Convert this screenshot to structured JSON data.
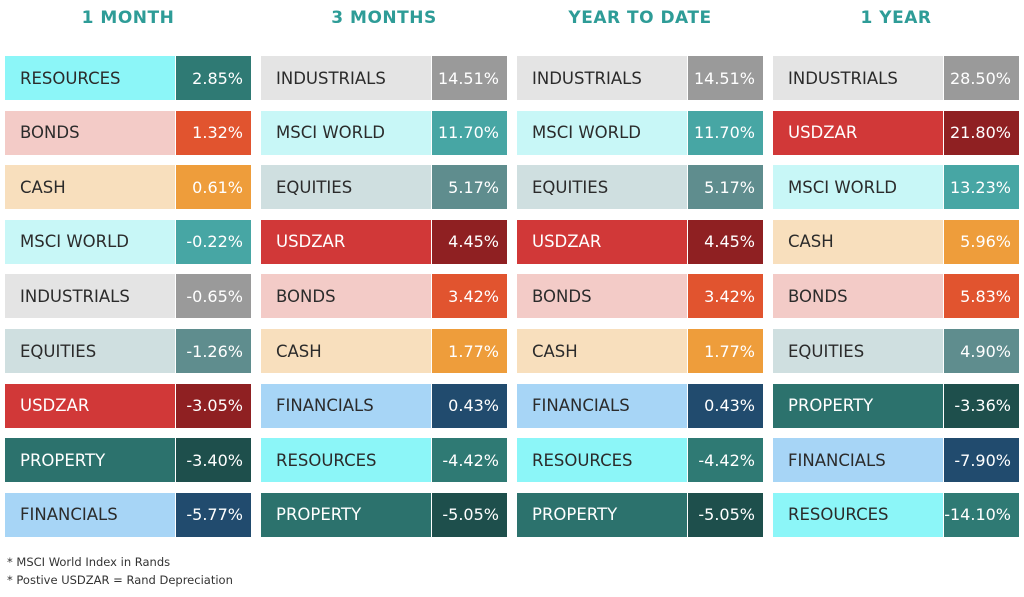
{
  "palette": {
    "RESOURCES": {
      "label_bg": "#8cf6f8",
      "value_bg": "#2f7a74",
      "dark": false
    },
    "BONDS": {
      "label_bg": "#f3cbc7",
      "value_bg": "#e1542f",
      "dark": false
    },
    "CASH": {
      "label_bg": "#f8dfbd",
      "value_bg": "#ee9d3b",
      "dark": false
    },
    "MSCI WORLD": {
      "label_bg": "#c8f7f7",
      "value_bg": "#47a6a4",
      "dark": false
    },
    "INDUSTRIALS": {
      "label_bg": "#e4e4e4",
      "value_bg": "#9a9a9a",
      "dark": false
    },
    "EQUITIES": {
      "label_bg": "#cfdfe0",
      "value_bg": "#5f8d8e",
      "dark": false
    },
    "USDZAR": {
      "label_bg": "#d13838",
      "value_bg": "#8f2022",
      "dark": true
    },
    "PROPERTY": {
      "label_bg": "#2c726d",
      "value_bg": "#1e4f4c",
      "dark": true
    },
    "FINANCIALS": {
      "label_bg": "#a7d5f6",
      "value_bg": "#214b6e",
      "dark": false
    }
  },
  "chart_data": {
    "type": "table",
    "columns": [
      {
        "title": "1 MONTH",
        "rows": [
          {
            "asset": "RESOURCES",
            "value": "2.85%"
          },
          {
            "asset": "BONDS",
            "value": "1.32%"
          },
          {
            "asset": "CASH",
            "value": "0.61%"
          },
          {
            "asset": "MSCI WORLD",
            "value": "-0.22%"
          },
          {
            "asset": "INDUSTRIALS",
            "value": "-0.65%"
          },
          {
            "asset": "EQUITIES",
            "value": "-1.26%"
          },
          {
            "asset": "USDZAR",
            "value": "-3.05%"
          },
          {
            "asset": "PROPERTY",
            "value": "-3.40%"
          },
          {
            "asset": "FINANCIALS",
            "value": "-5.77%"
          }
        ]
      },
      {
        "title": "3 MONTHS",
        "rows": [
          {
            "asset": "INDUSTRIALS",
            "value": "14.51%"
          },
          {
            "asset": "MSCI WORLD",
            "value": "11.70%"
          },
          {
            "asset": "EQUITIES",
            "value": "5.17%"
          },
          {
            "asset": "USDZAR",
            "value": "4.45%"
          },
          {
            "asset": "BONDS",
            "value": "3.42%"
          },
          {
            "asset": "CASH",
            "value": "1.77%"
          },
          {
            "asset": "FINANCIALS",
            "value": "0.43%"
          },
          {
            "asset": "RESOURCES",
            "value": "-4.42%"
          },
          {
            "asset": "PROPERTY",
            "value": "-5.05%"
          }
        ]
      },
      {
        "title": "YEAR TO DATE",
        "rows": [
          {
            "asset": "INDUSTRIALS",
            "value": "14.51%"
          },
          {
            "asset": "MSCI WORLD",
            "value": "11.70%"
          },
          {
            "asset": "EQUITIES",
            "value": "5.17%"
          },
          {
            "asset": "USDZAR",
            "value": "4.45%"
          },
          {
            "asset": "BONDS",
            "value": "3.42%"
          },
          {
            "asset": "CASH",
            "value": "1.77%"
          },
          {
            "asset": "FINANCIALS",
            "value": "0.43%"
          },
          {
            "asset": "RESOURCES",
            "value": "-4.42%"
          },
          {
            "asset": "PROPERTY",
            "value": "-5.05%"
          }
        ]
      },
      {
        "title": "1 YEAR",
        "rows": [
          {
            "asset": "INDUSTRIALS",
            "value": "28.50%"
          },
          {
            "asset": "USDZAR",
            "value": "21.80%"
          },
          {
            "asset": "MSCI WORLD",
            "value": "13.23%"
          },
          {
            "asset": "CASH",
            "value": "5.96%"
          },
          {
            "asset": "BONDS",
            "value": "5.83%"
          },
          {
            "asset": "EQUITIES",
            "value": "4.90%"
          },
          {
            "asset": "PROPERTY",
            "value": "-3.36%"
          },
          {
            "asset": "FINANCIALS",
            "value": "-7.90%"
          },
          {
            "asset": "RESOURCES",
            "value": "-14.10%"
          }
        ]
      }
    ],
    "footnotes": [
      "* MSCI World Index in  Rands",
      "* Postive USDZAR = Rand Depreciation"
    ]
  }
}
